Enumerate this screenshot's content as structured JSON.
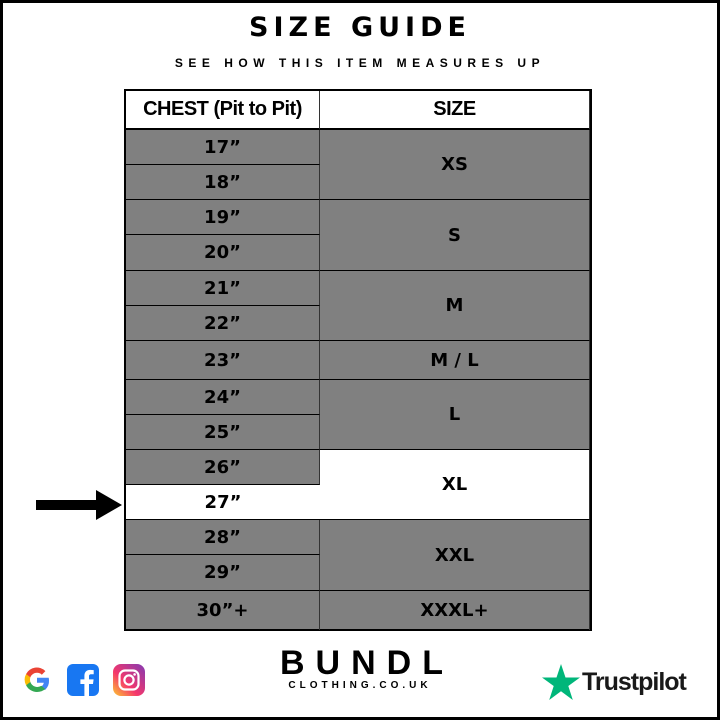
{
  "title": "SIZE GUIDE",
  "subtitle": "SEE HOW THIS ITEM MEASURES UP",
  "table": {
    "headers": [
      "CHEST (Pit to Pit)",
      "SIZE"
    ],
    "chest": [
      "17”",
      "18”",
      "19”",
      "20”",
      "21”",
      "22”",
      "23”",
      "24”",
      "25”",
      "26”",
      "27”",
      "28”",
      "29”",
      "30”+"
    ],
    "sizes": [
      "XS",
      "S",
      "M",
      "M / L",
      "L",
      "XL",
      "XXL",
      "XXXL+"
    ],
    "highlighted_chest": "27”",
    "highlighted_size": "XL"
  },
  "colors": {
    "row_bg": "#808080",
    "highlight_bg": "#ffffff",
    "trustpilot_green": "#00b67a"
  },
  "brand": {
    "name": "BUNDL",
    "domain": "CLOTHING.CO.UK"
  },
  "footer": {
    "trustpilot": "Trustpilot",
    "icons": [
      "google-icon",
      "facebook-icon",
      "instagram-icon"
    ]
  }
}
